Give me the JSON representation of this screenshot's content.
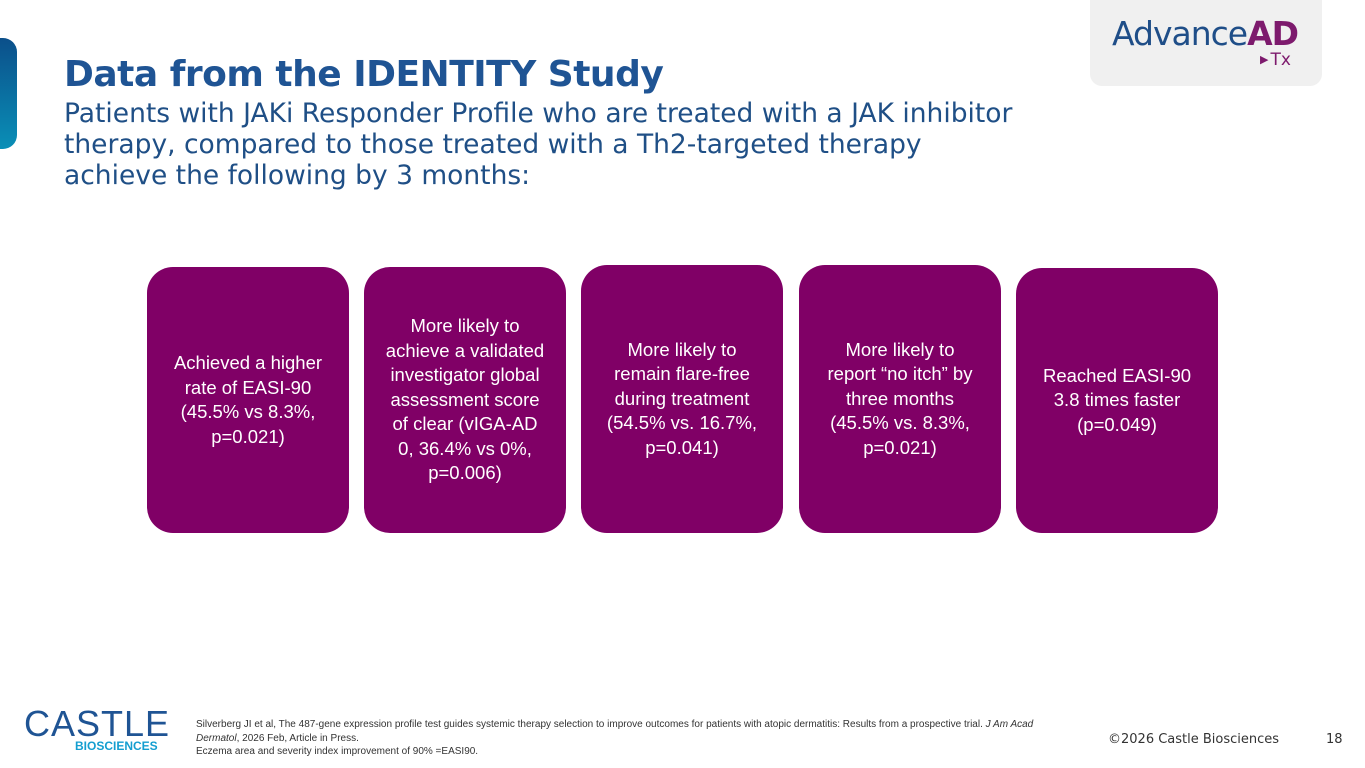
{
  "logo": {
    "main_prefix": "Advance",
    "main_accent": "AD",
    "sub": "Tx",
    "sub_icon": "play-triangle-icon"
  },
  "title": "Data from the IDENTITY Study",
  "subtitle": "Patients with JAKi Responder Profile who are treated with a JAK inhibitor therapy, compared to those treated with a Th2-targeted therapy achieve the following by 3 months:",
  "cards": [
    "Achieved a higher rate of EASI-90 (45.5% vs 8.3%, p=0.021)",
    "More likely to achieve a validated investigator global assessment score of clear (vIGA-AD 0, 36.4% vs 0%, p=0.006)",
    "More likely to remain flare-free during treatment (54.5% vs. 16.7%, p=0.041)",
    "More likely to report “no itch” by three months (45.5% vs. 8.3%, p=0.021)",
    "Reached EASI-90 3.8 times faster (p=0.049)"
  ],
  "footer": {
    "castle_logo_word": "CASTLE",
    "castle_logo_sub": "BIOSCIENCES",
    "reference_pre": "Silverberg JI et al, The 487-gene expression profile test guides systemic therapy selection to improve outcomes for patients with atopic dermatitis: Results from a prospective trial. ",
    "reference_journal": "J Am Acad Dermatol",
    "reference_post": ", 2026 Feb, Article in Press.",
    "footnote": "Eczema area and severity index improvement of 90% =EASI90.",
    "copyright": "©2026 Castle Biosciences",
    "page_number": "18"
  },
  "colors": {
    "title_blue": "#1f5494",
    "card_purple": "#800066",
    "accent_cyan": "#149ed0"
  }
}
